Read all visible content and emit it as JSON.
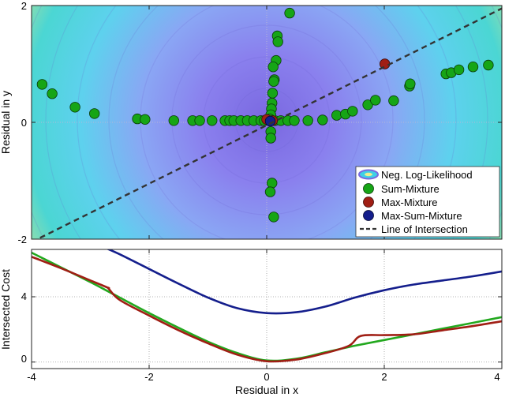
{
  "chart_data": [
    {
      "type": "scatter",
      "ylabel": "Residual in y",
      "xlim": [
        -4,
        4
      ],
      "ylim": [
        -2,
        2
      ],
      "y_ticks": [
        -2,
        0,
        2
      ],
      "background": "contour of Neg. Log-Likelihood (yellow-green at bottom-left, cyan outer rings, violet near center)",
      "grid": "dotted lines at x=0 and y=0",
      "legend_position": "bottom-right",
      "legend": [
        "Neg. Log-Likelihood",
        "Sum-Mixture",
        "Max-Mixture",
        "Max-Sum-Mixture",
        "Line of Intersection"
      ],
      "series": [
        {
          "name": "Sum-Mixture",
          "color": "#16a516",
          "points": [
            [
              -3.82,
              0.65
            ],
            [
              -3.65,
              0.49
            ],
            [
              -3.26,
              0.26
            ],
            [
              -2.93,
              0.15
            ],
            [
              -2.2,
              0.06
            ],
            [
              -2.07,
              0.05
            ],
            [
              -1.58,
              0.03
            ],
            [
              -1.26,
              0.03
            ],
            [
              -1.14,
              0.03
            ],
            [
              -0.93,
              0.03
            ],
            [
              -0.71,
              0.03
            ],
            [
              -0.63,
              0.03
            ],
            [
              -0.56,
              0.03
            ],
            [
              -0.44,
              0.03
            ],
            [
              -0.33,
              0.03
            ],
            [
              -0.22,
              0.03
            ],
            [
              -0.1,
              0.03
            ],
            [
              -0.04,
              0.03
            ],
            [
              0.14,
              0.03
            ],
            [
              0.24,
              0.03
            ],
            [
              0.36,
              0.03
            ],
            [
              0.47,
              0.03
            ],
            [
              0.7,
              0.03
            ],
            [
              0.95,
              0.04
            ],
            [
              1.19,
              0.12
            ],
            [
              1.34,
              0.14
            ],
            [
              1.46,
              0.19
            ],
            [
              1.72,
              0.3
            ],
            [
              1.85,
              0.38
            ],
            [
              2.16,
              0.37
            ],
            [
              2.43,
              0.62
            ],
            [
              2.44,
              0.66
            ],
            [
              3.05,
              0.83
            ],
            [
              3.14,
              0.85
            ],
            [
              3.27,
              0.9
            ],
            [
              3.51,
              0.95
            ],
            [
              3.77,
              0.98
            ],
            [
              0.39,
              1.87
            ],
            [
              0.18,
              1.48
            ],
            [
              0.19,
              1.38
            ],
            [
              0.16,
              1.06
            ],
            [
              0.11,
              0.95
            ],
            [
              0.13,
              0.73
            ],
            [
              0.12,
              0.7
            ],
            [
              0.1,
              0.5
            ],
            [
              0.09,
              0.33
            ],
            [
              0.08,
              0.23
            ],
            [
              0.07,
              0.13
            ],
            [
              0.05,
              0.06
            ],
            [
              0.07,
              -0.16
            ],
            [
              0.07,
              -0.27
            ],
            [
              0.09,
              -1.04
            ],
            [
              0.06,
              -1.19
            ],
            [
              0.12,
              -1.62
            ]
          ]
        },
        {
          "name": "Max-Mixture",
          "color": "#a01e14",
          "points": [
            [
              2.01,
              1.0
            ],
            [
              0.0,
              0.05
            ],
            [
              0.1,
              0.03
            ]
          ]
        },
        {
          "name": "Max-Sum-Mixture",
          "color": "#141e8c",
          "points": [
            [
              0.06,
              0.02
            ]
          ]
        },
        {
          "name": "Line of Intersection",
          "color": "#333333",
          "style": "dashed",
          "x": [
            -4,
            4
          ],
          "y": [
            -2.05,
            1.95
          ]
        }
      ]
    },
    {
      "type": "line",
      "xlabel": "Residual in x",
      "ylabel": "Intersected Cost",
      "xlim": [
        -4,
        4
      ],
      "ylim": [
        -0.4,
        6.9
      ],
      "x_ticks": [
        -4,
        -2,
        0,
        2,
        4
      ],
      "y_ticks": [
        0,
        4
      ],
      "grid": "dotted lines at x ticks and y ticks",
      "series": [
        {
          "name": "Sum-Mixture",
          "color": "#22a81e",
          "x": [
            -4,
            -3.5,
            -3,
            -2.5,
            -2,
            -1.5,
            -1,
            -0.5,
            0,
            0.5,
            1,
            1.5,
            2,
            2.5,
            3,
            3.5,
            4
          ],
          "y": [
            6.7,
            5.8,
            4.9,
            3.95,
            3.0,
            2.1,
            1.25,
            0.55,
            0.1,
            0.2,
            0.6,
            1.0,
            1.35,
            1.7,
            2.05,
            2.4,
            2.75
          ]
        },
        {
          "name": "Max-Mixture",
          "color": "#a01e14",
          "x": [
            -4,
            -3.5,
            -3,
            -2.7,
            -2.69,
            -2.5,
            -2,
            -1.5,
            -1,
            -0.5,
            0,
            0.5,
            1,
            1.4,
            1.6,
            2,
            2.5,
            3,
            3.5,
            4
          ],
          "y": [
            6.45,
            5.75,
            5.0,
            4.55,
            4.5,
            3.8,
            2.85,
            1.95,
            1.15,
            0.45,
            0.05,
            0.15,
            0.55,
            1.0,
            1.6,
            1.65,
            1.7,
            1.95,
            2.2,
            2.5
          ]
        },
        {
          "name": "Max-Sum-Mixture",
          "color": "#141e8c",
          "x": [
            -2.75,
            -2.5,
            -2,
            -1.5,
            -1,
            -0.5,
            0,
            0.5,
            1,
            1.5,
            2,
            2.5,
            3,
            3.5,
            4
          ],
          "y": [
            7.0,
            6.6,
            5.7,
            4.8,
            3.95,
            3.3,
            3.0,
            3.05,
            3.4,
            3.95,
            4.4,
            4.75,
            5.0,
            5.25,
            5.55
          ]
        }
      ]
    }
  ],
  "text": {
    "x_tick_labels": [
      "-4",
      "-2",
      "0",
      "2",
      "4"
    ],
    "top_y_tick_labels": [
      "2",
      "0",
      "-2"
    ],
    "bottom_y_tick_labels": [
      "4",
      "0"
    ]
  }
}
